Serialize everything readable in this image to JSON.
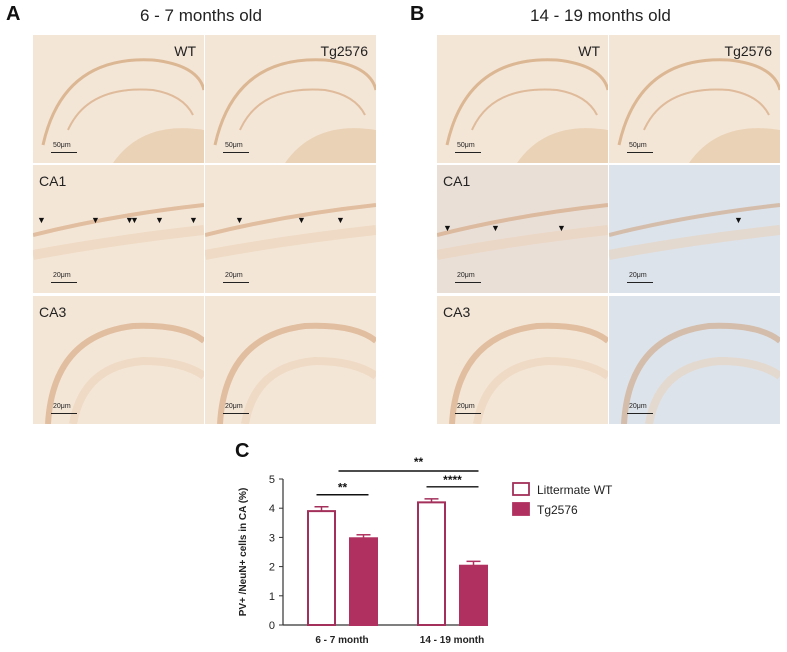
{
  "panel_a": {
    "letter": "A",
    "title": "6 - 7 months old"
  },
  "panel_b": {
    "letter": "B",
    "title": "14 - 19 months old"
  },
  "panel_c": {
    "letter": "C"
  },
  "column_labels": {
    "wt": "WT",
    "tg": "Tg2576"
  },
  "row_labels": {
    "ca1": "CA1",
    "ca3": "CA3"
  },
  "scale_bars": {
    "overview": "50μm",
    "detail": "20μm"
  },
  "colors": {
    "tissue_light": "#f4e6d6",
    "tissue_mid": "#e9cfb3",
    "tissue_dark": "#c98f5f",
    "tissue_blue": "#dde3ea",
    "bar_wt_edge": "#a3305a",
    "bar_tg_fill": "#b0315f"
  },
  "chart_data": {
    "type": "bar",
    "categories": [
      "6 - 7 month",
      "14 - 19 month"
    ],
    "series": [
      {
        "name": "Littermate WT",
        "values": [
          3.9,
          4.2
        ],
        "errors": [
          0.15,
          0.12
        ]
      },
      {
        "name": "Tg2576",
        "values": [
          2.97,
          2.03
        ],
        "errors": [
          0.12,
          0.15
        ]
      }
    ],
    "ylabel": "PV+ /NeuN+ cells in CA (%)",
    "ylim": [
      0,
      5
    ],
    "yticks": [
      0,
      1,
      2,
      3,
      4,
      5
    ],
    "significance": [
      {
        "label": "**",
        "between": "WT vs Tg2576, 6 - 7 month"
      },
      {
        "label": "****",
        "between": "WT vs Tg2576, 14 - 19 month"
      },
      {
        "label": "**",
        "between": "Tg2576 6 - 7 month vs Tg2576 14 - 19 month"
      }
    ],
    "legend_position": "right"
  }
}
